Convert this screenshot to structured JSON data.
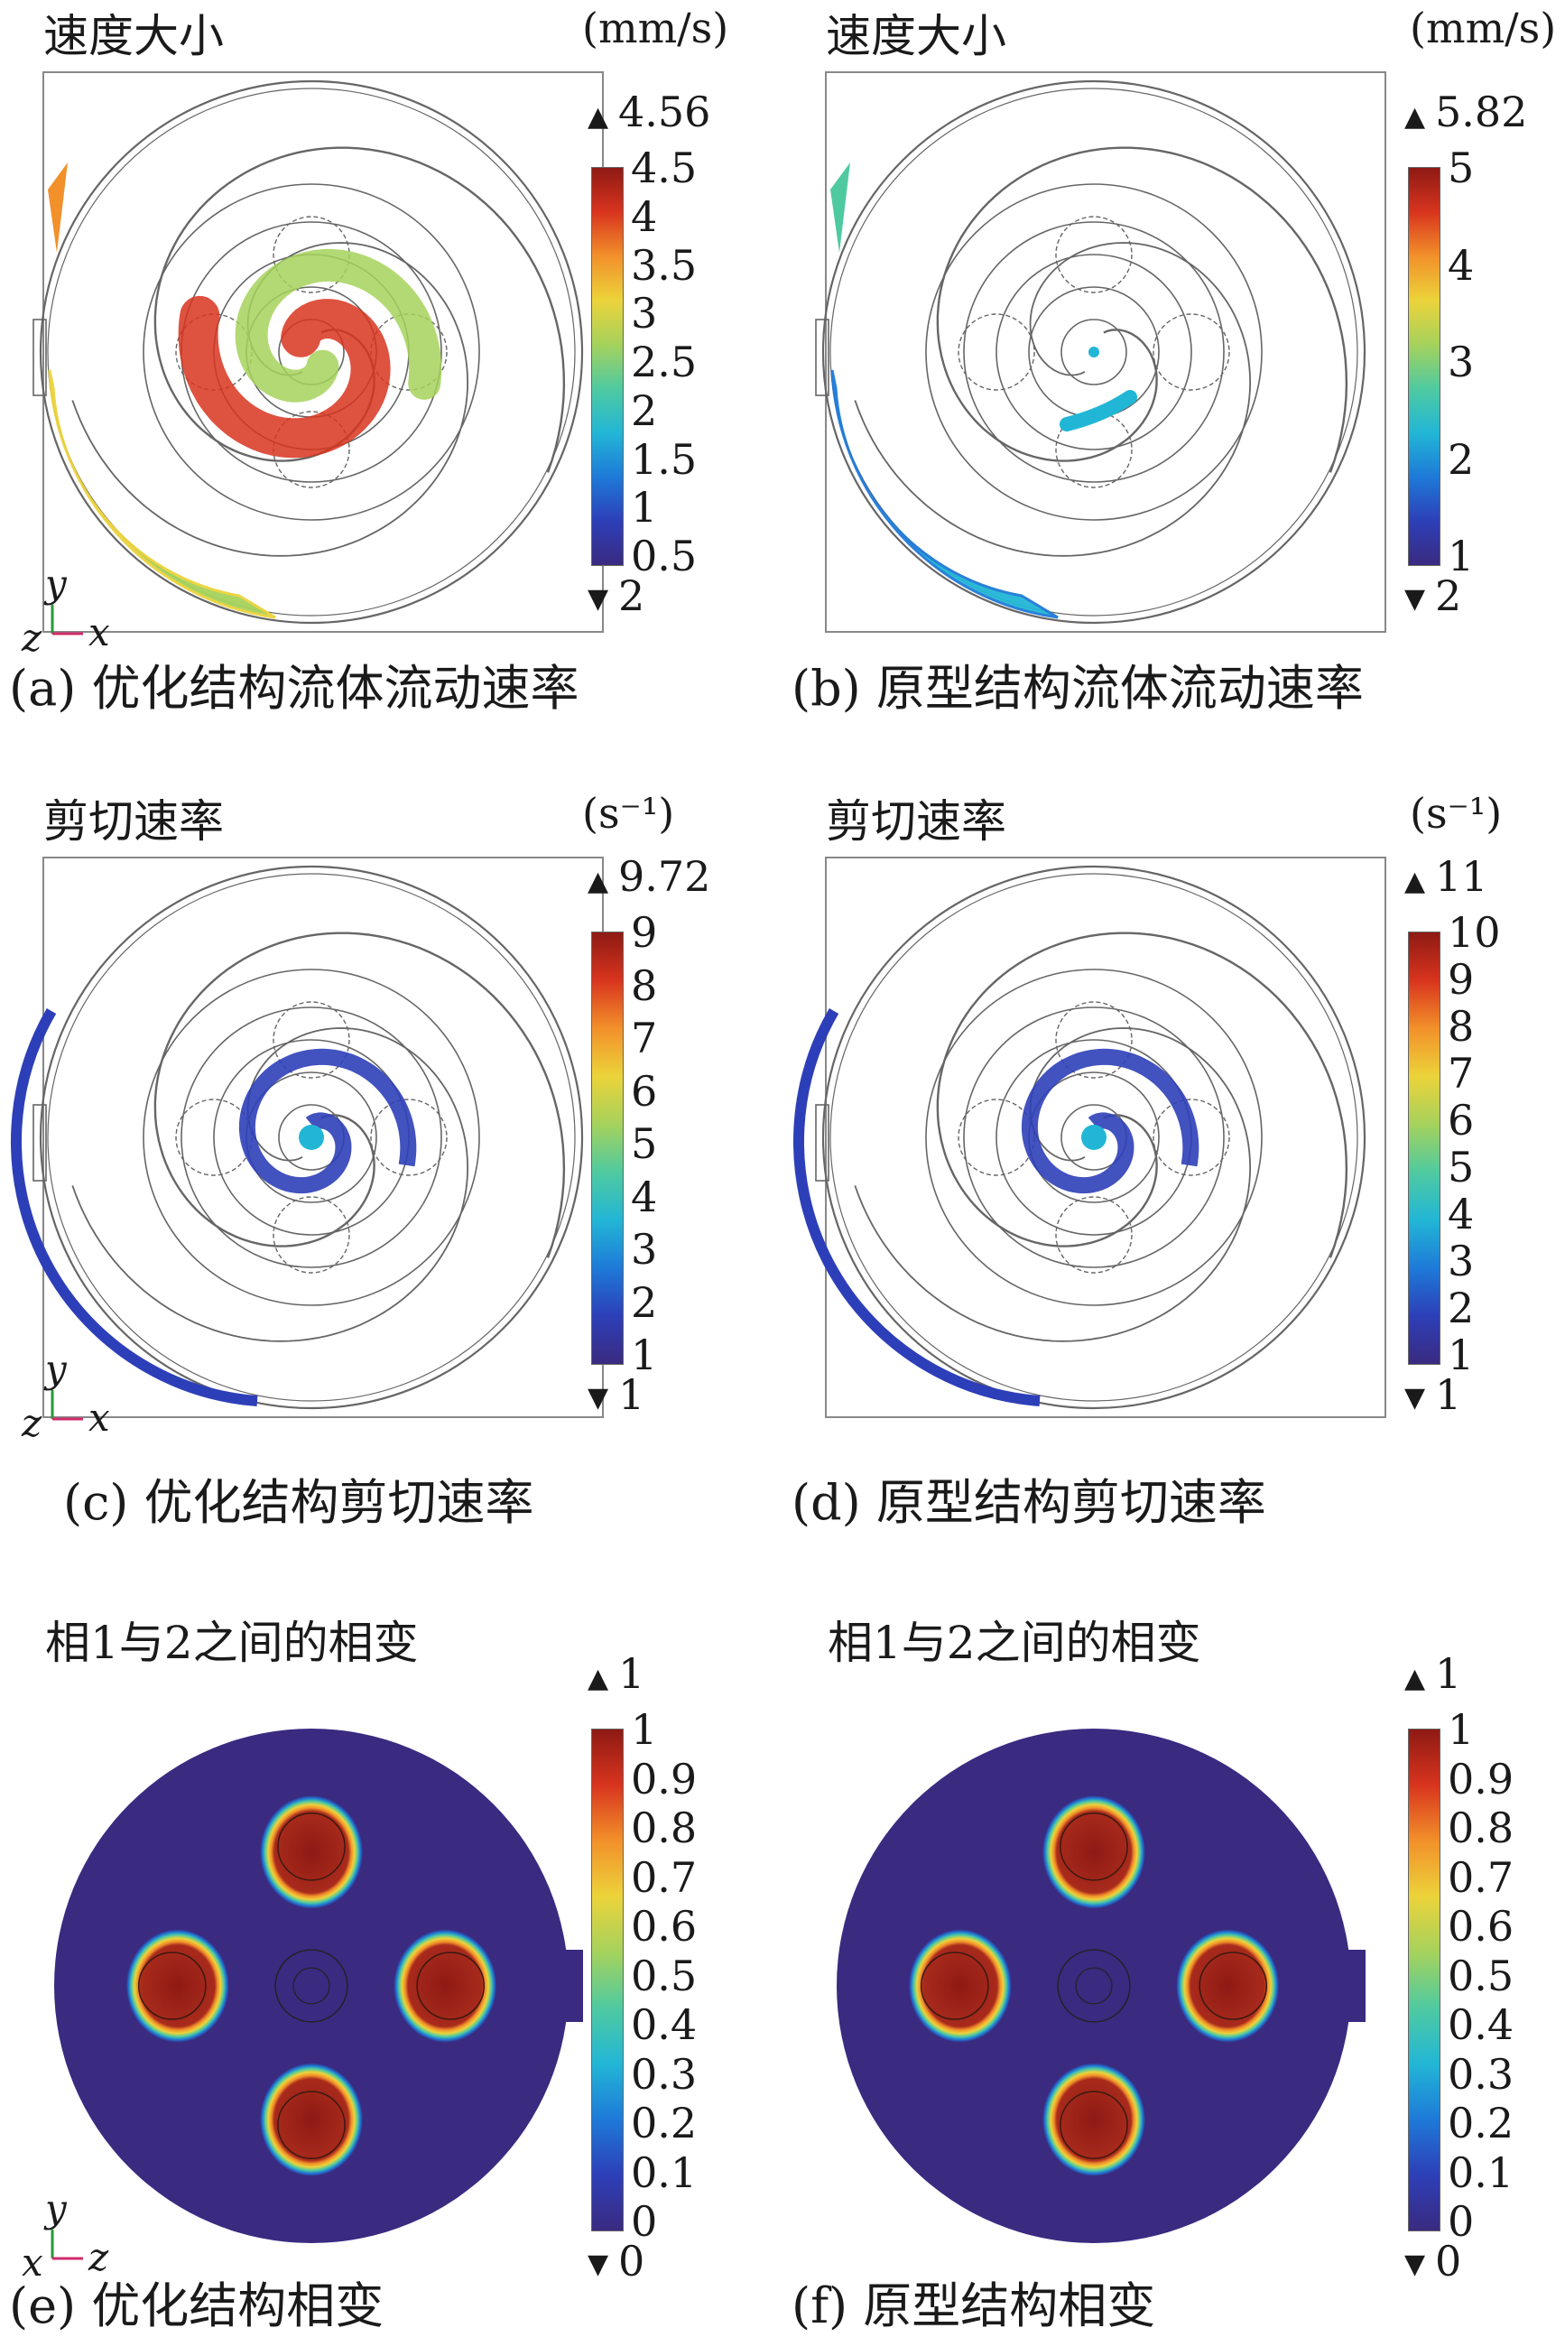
{
  "colormap": [
    "#3a2a80",
    "#2d3fb8",
    "#1e7ad8",
    "#22b6d6",
    "#4fcaa0",
    "#a6d25c",
    "#ecd33a",
    "#f2902a",
    "#d8341e",
    "#8e1a14"
  ],
  "panels": [
    {
      "id": "a",
      "title": "速度大小",
      "unit": "(mm/s)",
      "max_label": "4.56",
      "min_label": "2",
      "ticks": [
        "4.5",
        "4",
        "3.5",
        "3",
        "2.5",
        "2",
        "1.5",
        "1",
        "0.5"
      ],
      "caption": "(a) 优化结构流体流动速率",
      "kind": "velocity-opt",
      "axes": {
        "up": "y",
        "right": "x",
        "origin": "z"
      }
    },
    {
      "id": "b",
      "title": "速度大小",
      "unit": "(mm/s)",
      "max_label": "5.82",
      "min_label": "2",
      "ticks": [
        "5",
        "4",
        "3",
        "2",
        "1"
      ],
      "caption": "(b) 原型结构流体流动速率",
      "kind": "velocity-proto"
    },
    {
      "id": "c",
      "title": "剪切速率",
      "unit": "(s⁻¹)",
      "max_label": "9.72",
      "min_label": "1",
      "ticks": [
        "9",
        "8",
        "7",
        "6",
        "5",
        "4",
        "3",
        "2",
        "1"
      ],
      "caption": "(c) 优化结构剪切速率",
      "kind": "shear-opt",
      "axes": {
        "up": "y",
        "right": "x",
        "origin": "z"
      }
    },
    {
      "id": "d",
      "title": "剪切速率",
      "unit": "(s⁻¹)",
      "max_label": "11",
      "min_label": "1",
      "ticks": [
        "10",
        "9",
        "8",
        "7",
        "6",
        "5",
        "4",
        "3",
        "2",
        "1"
      ],
      "caption": "(d) 原型结构剪切速率",
      "kind": "shear-proto"
    },
    {
      "id": "e",
      "title": "相1与2之间的相变",
      "unit": "",
      "max_label": "1",
      "min_label": "0",
      "ticks": [
        "1",
        "0.9",
        "0.8",
        "0.7",
        "0.6",
        "0.5",
        "0.4",
        "0.3",
        "0.2",
        "0.1",
        "0"
      ],
      "caption": "(e) 优化结构相变",
      "kind": "phase",
      "axes": {
        "up": "y",
        "right": "z",
        "origin": "x"
      }
    },
    {
      "id": "f",
      "title": "相1与2之间的相变",
      "unit": "",
      "max_label": "1",
      "min_label": "0",
      "ticks": [
        "1",
        "0.9",
        "0.8",
        "0.7",
        "0.6",
        "0.5",
        "0.4",
        "0.3",
        "0.2",
        "0.1",
        "0"
      ],
      "caption": "(f) 原型结构相变",
      "kind": "phase"
    }
  ]
}
